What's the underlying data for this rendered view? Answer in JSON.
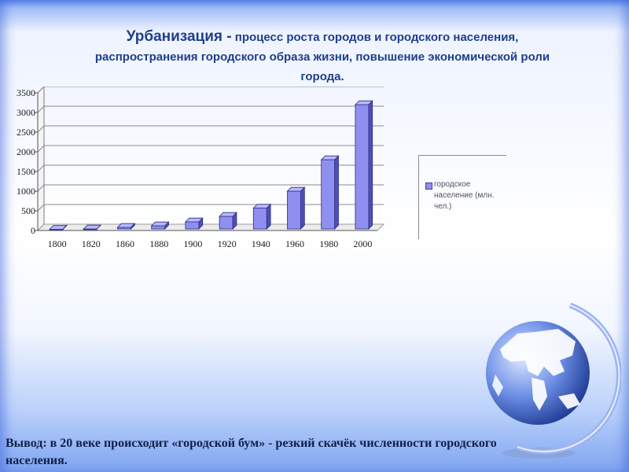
{
  "slide": {
    "title_main": "Урбанизация -",
    "title_rest_1": " процесс роста городов и городского населения,",
    "title_line2": "распространения городского образа жизни, повышение экономической роли",
    "title_line3": "города.",
    "conclusion": "Вывод: в 20 веке происходит «городской бум» - резкий скачёк численности городского населения."
  },
  "colors": {
    "bar_front": "#8f8ff0",
    "bar_top": "#b9b9ff",
    "bar_side": "#4f4fb8",
    "title": "#1f3f8a",
    "background_edge": "#5a86e8"
  },
  "chart_data": {
    "type": "bar",
    "three_d": true,
    "categories": [
      "1800",
      "1820",
      "1860",
      "1880",
      "1900",
      "1920",
      "1940",
      "1960",
      "1980",
      "2000"
    ],
    "series": [
      {
        "name": "городское население (млн. чел.)",
        "values": [
          30,
          40,
          80,
          120,
          220,
          360,
          570,
          1000,
          1800,
          3200
        ]
      }
    ],
    "y_ticks": [
      "0",
      "500",
      "1000",
      "1500",
      "2000",
      "2500",
      "3000",
      "3500"
    ],
    "ylim": [
      0,
      3500
    ],
    "grid": true,
    "legend_position": "right"
  }
}
